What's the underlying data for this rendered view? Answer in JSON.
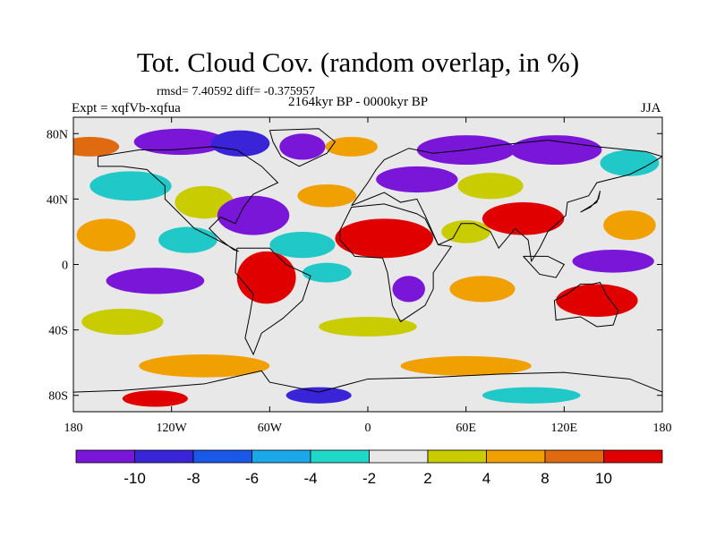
{
  "header": {
    "title": "Tot. Cloud Cov. (random overlap, in %)",
    "stats": "rmsd= 7.40592 diff= -0.375957",
    "period": "2164kyr BP - 0000kyr BP",
    "experiment": "Expt = xqfVb-xqfua",
    "season": "JJA"
  },
  "map": {
    "lon_range": [
      -180,
      180
    ],
    "lat_range": [
      -90,
      90
    ],
    "lon_ticks": [
      {
        "value": -180,
        "label": "180"
      },
      {
        "value": -120,
        "label": "120W"
      },
      {
        "value": -60,
        "label": "60W"
      },
      {
        "value": 0,
        "label": "0"
      },
      {
        "value": 60,
        "label": "60E"
      },
      {
        "value": 120,
        "label": "120E"
      },
      {
        "value": 180,
        "label": "180"
      }
    ],
    "lat_ticks": [
      {
        "value": 80,
        "label": "80N"
      },
      {
        "value": 40,
        "label": "40N"
      },
      {
        "value": 0,
        "label": "0"
      },
      {
        "value": -40,
        "label": "40S"
      },
      {
        "value": -80,
        "label": "80S"
      }
    ],
    "background_color": "#e8e8e8",
    "anomaly_regions": [
      {
        "lon": -170,
        "lat": 72,
        "rx": 18,
        "ry": 6,
        "color": "#e06a10"
      },
      {
        "lon": -115,
        "lat": 75,
        "rx": 28,
        "ry": 8,
        "color": "#7a16d8"
      },
      {
        "lon": -78,
        "lat": 74,
        "rx": 18,
        "ry": 8,
        "color": "#3a24d8"
      },
      {
        "lon": -40,
        "lat": 72,
        "rx": 14,
        "ry": 8,
        "color": "#7a16d8"
      },
      {
        "lon": -10,
        "lat": 72,
        "rx": 16,
        "ry": 6,
        "color": "#f0a000"
      },
      {
        "lon": 60,
        "lat": 70,
        "rx": 30,
        "ry": 9,
        "color": "#7a16d8"
      },
      {
        "lon": 115,
        "lat": 70,
        "rx": 28,
        "ry": 9,
        "color": "#7a16d8"
      },
      {
        "lon": 160,
        "lat": 62,
        "rx": 18,
        "ry": 8,
        "color": "#20c8c8"
      },
      {
        "lon": -145,
        "lat": 48,
        "rx": 25,
        "ry": 9,
        "color": "#20c8c8"
      },
      {
        "lon": -100,
        "lat": 38,
        "rx": 18,
        "ry": 10,
        "color": "#c8cc00"
      },
      {
        "lon": -25,
        "lat": 42,
        "rx": 18,
        "ry": 7,
        "color": "#f0a000"
      },
      {
        "lon": 30,
        "lat": 52,
        "rx": 25,
        "ry": 8,
        "color": "#7a16d8"
      },
      {
        "lon": 75,
        "lat": 48,
        "rx": 20,
        "ry": 8,
        "color": "#c8cc00"
      },
      {
        "lon": -160,
        "lat": 18,
        "rx": 18,
        "ry": 10,
        "color": "#f0a000"
      },
      {
        "lon": -110,
        "lat": 15,
        "rx": 18,
        "ry": 8,
        "color": "#20c8c8"
      },
      {
        "lon": -70,
        "lat": 30,
        "rx": 22,
        "ry": 12,
        "color": "#7a16d8"
      },
      {
        "lon": -40,
        "lat": 12,
        "rx": 20,
        "ry": 8,
        "color": "#20c8c8"
      },
      {
        "lon": 10,
        "lat": 16,
        "rx": 30,
        "ry": 12,
        "color": "#e00000"
      },
      {
        "lon": 60,
        "lat": 20,
        "rx": 15,
        "ry": 7,
        "color": "#c8cc00"
      },
      {
        "lon": 95,
        "lat": 28,
        "rx": 25,
        "ry": 10,
        "color": "#e00000"
      },
      {
        "lon": 160,
        "lat": 24,
        "rx": 16,
        "ry": 9,
        "color": "#f0a000"
      },
      {
        "lon": -130,
        "lat": -10,
        "rx": 30,
        "ry": 8,
        "color": "#7a16d8"
      },
      {
        "lon": -62,
        "lat": -8,
        "rx": 18,
        "ry": 16,
        "color": "#e00000"
      },
      {
        "lon": -25,
        "lat": -5,
        "rx": 15,
        "ry": 6,
        "color": "#20c8c8"
      },
      {
        "lon": 25,
        "lat": -15,
        "rx": 10,
        "ry": 8,
        "color": "#7a16d8"
      },
      {
        "lon": 70,
        "lat": -15,
        "rx": 20,
        "ry": 8,
        "color": "#f0a000"
      },
      {
        "lon": 150,
        "lat": 2,
        "rx": 25,
        "ry": 7,
        "color": "#7a16d8"
      },
      {
        "lon": 140,
        "lat": -22,
        "rx": 25,
        "ry": 10,
        "color": "#e00000"
      },
      {
        "lon": -150,
        "lat": -35,
        "rx": 25,
        "ry": 8,
        "color": "#c8cc00"
      },
      {
        "lon": 0,
        "lat": -38,
        "rx": 30,
        "ry": 6,
        "color": "#c8cc00"
      },
      {
        "lon": -100,
        "lat": -62,
        "rx": 40,
        "ry": 7,
        "color": "#f0a000"
      },
      {
        "lon": 60,
        "lat": -62,
        "rx": 40,
        "ry": 6,
        "color": "#f0a000"
      },
      {
        "lon": -130,
        "lat": -82,
        "rx": 20,
        "ry": 5,
        "color": "#e00000"
      },
      {
        "lon": -30,
        "lat": -80,
        "rx": 20,
        "ry": 5,
        "color": "#3a24d8"
      },
      {
        "lon": 100,
        "lat": -80,
        "rx": 30,
        "ry": 5,
        "color": "#20c8c8"
      }
    ]
  },
  "colorbar": {
    "colors": [
      "#7a16d8",
      "#3a24d8",
      "#1a58e8",
      "#1aa8e8",
      "#20d8c8",
      "#e8e8e8",
      "#c8cc00",
      "#f0a000",
      "#e06a10",
      "#e00000"
    ],
    "labels": [
      "-10",
      "-8",
      "-6",
      "-4",
      "-2",
      "2",
      "4",
      "8",
      "10"
    ]
  }
}
